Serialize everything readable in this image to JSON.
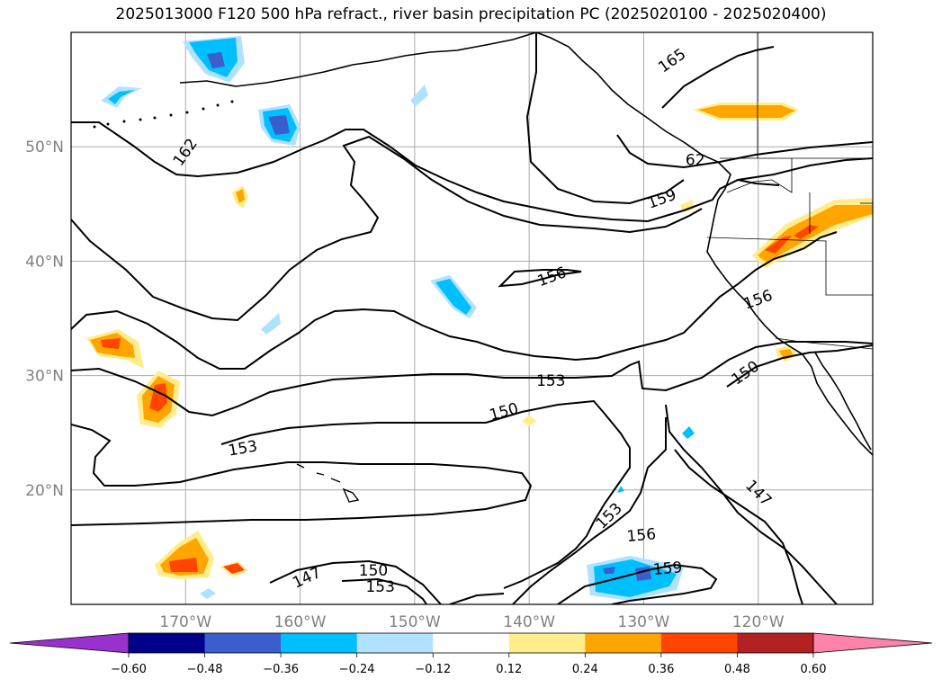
{
  "title": "2025013000 F120 500 hPa refract., river basin precipitation PC (2025020100 - 2025020400)",
  "chart_data": {
    "type": "contour map",
    "title": "2025013000 F120 500 hPa refract., river basin precipitation PC (2025020100 - 2025020400)",
    "map": {
      "lon_range": [
        -180,
        -110
      ],
      "lat_range": [
        10,
        60
      ],
      "lat_ticks": [
        {
          "value": 20,
          "label": "20°N"
        },
        {
          "value": 30,
          "label": "30°N"
        },
        {
          "value": 40,
          "label": "40°N"
        },
        {
          "value": 50,
          "label": "50°N"
        }
      ],
      "lon_ticks": [
        {
          "value": -170,
          "label": "170°W"
        },
        {
          "value": -160,
          "label": "160°W"
        },
        {
          "value": -150,
          "label": "150°W"
        },
        {
          "value": -140,
          "label": "140°W"
        },
        {
          "value": -130,
          "label": "130°W"
        },
        {
          "value": -120,
          "label": "120°W"
        }
      ],
      "grid": true
    },
    "contour_labels": [
      {
        "text": "165",
        "lon": -127.5,
        "lat": 57.5,
        "angle": -35
      },
      {
        "text": "162",
        "lon": -170.0,
        "lat": 49.5,
        "angle": -55
      },
      {
        "text": "62",
        "lon": -125.5,
        "lat": 48.8,
        "angle": 0
      },
      {
        "text": "159",
        "lon": -128.4,
        "lat": 45.4,
        "angle": -20
      },
      {
        "text": "156",
        "lon": -138.0,
        "lat": 38.6,
        "angle": -20
      },
      {
        "text": "156",
        "lon": -120.0,
        "lat": 36.6,
        "angle": -20
      },
      {
        "text": "153",
        "lon": -138.1,
        "lat": 29.5,
        "angle": 0
      },
      {
        "text": "150",
        "lon": -121.1,
        "lat": 30.2,
        "angle": -35
      },
      {
        "text": "150",
        "lon": -142.2,
        "lat": 26.8,
        "angle": -15
      },
      {
        "text": "153",
        "lon": -165.0,
        "lat": 23.6,
        "angle": -10
      },
      {
        "text": "147",
        "lon": -120.0,
        "lat": 19.7,
        "angle": 45
      },
      {
        "text": "153",
        "lon": -133.0,
        "lat": 17.7,
        "angle": -45
      },
      {
        "text": "156",
        "lon": -130.2,
        "lat": 16.0,
        "angle": -5
      },
      {
        "text": "147",
        "lon": -159.4,
        "lat": 12.3,
        "angle": -25
      },
      {
        "text": "150",
        "lon": -153.6,
        "lat": 12.9,
        "angle": 0
      },
      {
        "text": "153",
        "lon": -153.0,
        "lat": 11.5,
        "angle": 0
      },
      {
        "text": "159",
        "lon": -127.9,
        "lat": 13.1,
        "angle": -5
      }
    ],
    "colorbar": {
      "ticks": [
        -0.6,
        -0.48,
        -0.36,
        -0.24,
        -0.12,
        0.12,
        0.24,
        0.36,
        0.48,
        0.6
      ],
      "tick_labels": [
        "−0.60",
        "−0.48",
        "−0.36",
        "−0.24",
        "−0.12",
        "0.12",
        "0.24",
        "0.36",
        "0.48",
        "0.60"
      ],
      "colors": [
        "#9932cc",
        "#00008b",
        "#3a5fcd",
        "#00bfff",
        "#b0e2ff",
        "#ffffff",
        "#ffec8b",
        "#ffa500",
        "#ff4500",
        "#b22222",
        "#ff82ab"
      ],
      "extend": "both"
    }
  }
}
